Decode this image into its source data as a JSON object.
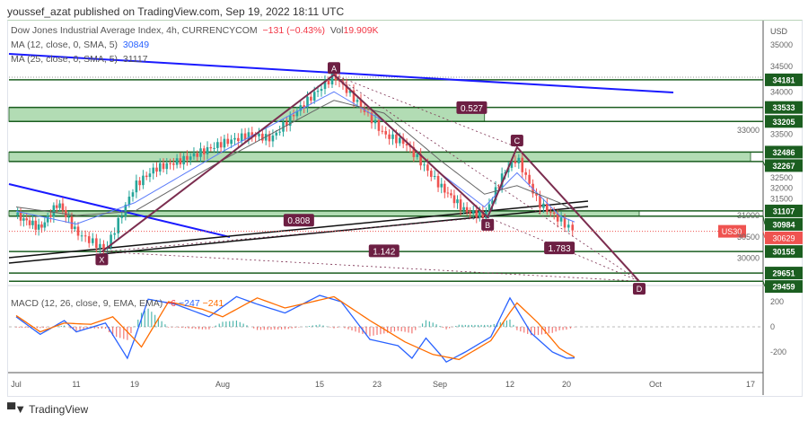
{
  "header": "youssef_azat published on TradingView.com, Sep 19, 2022 18:11 UTC",
  "legend": {
    "symbol": "Dow Jones Industrial Average Index, 4h, CURRENCYCOM",
    "change": "−131 (−0.43%)",
    "vol_label": "Vol",
    "vol": "19.909K",
    "ma12": "MA (12, close, 0, SMA, 5)",
    "ma12_val": "30849",
    "ma25": "MA (25, close, 0, SMA, 5)",
    "ma25_val": "31117",
    "macd": "MACD (12, 26, close, 9, EMA, EMA)",
    "macd_hist": "−6",
    "macd_val": "−247",
    "macd_sig": "−241"
  },
  "logo": "TradingView",
  "chart_data": {
    "type": "candlestick",
    "currency": "USD",
    "y_ticks": [
      35000,
      34500,
      34000,
      33500,
      33000,
      32500,
      32000,
      31500,
      31000,
      30500,
      30000
    ],
    "x_ticks": [
      {
        "label": "Jul",
        "day": 0
      },
      {
        "label": "11",
        "day": 10
      },
      {
        "label": "19",
        "day": 18
      },
      {
        "label": "Aug",
        "day": 31
      },
      {
        "label": "15",
        "day": 45
      },
      {
        "label": "23",
        "day": 53
      },
      {
        "label": "Sep",
        "day": 62
      },
      {
        "label": "12",
        "day": 73
      },
      {
        "label": "20",
        "day": 81
      },
      {
        "label": "Oct",
        "day": 92
      },
      {
        "label": "17",
        "day": 108
      }
    ],
    "price_path": [
      [
        0,
        31000
      ],
      [
        4,
        30700
      ],
      [
        7,
        31300
      ],
      [
        10,
        30600
      ],
      [
        14,
        30200
      ],
      [
        18,
        31700
      ],
      [
        21,
        32100
      ],
      [
        25,
        32300
      ],
      [
        31,
        32700
      ],
      [
        35,
        32900
      ],
      [
        38,
        32800
      ],
      [
        42,
        33500
      ],
      [
        47,
        34280
      ],
      [
        50,
        33700
      ],
      [
        54,
        32900
      ],
      [
        57,
        32700
      ],
      [
        59,
        32300
      ],
      [
        62,
        31700
      ],
      [
        66,
        31100
      ],
      [
        69,
        30990
      ],
      [
        72,
        32000
      ],
      [
        74,
        32350
      ],
      [
        77,
        31300
      ],
      [
        80,
        30900
      ],
      [
        82,
        30629
      ]
    ],
    "ma12_path": [
      [
        0,
        31100
      ],
      [
        10,
        30800
      ],
      [
        18,
        31300
      ],
      [
        31,
        32500
      ],
      [
        47,
        33900
      ],
      [
        54,
        33200
      ],
      [
        62,
        32000
      ],
      [
        69,
        31200
      ],
      [
        74,
        32000
      ],
      [
        80,
        31000
      ],
      [
        82,
        30849
      ]
    ],
    "ma25_path": [
      [
        0,
        31200
      ],
      [
        10,
        31000
      ],
      [
        18,
        31100
      ],
      [
        31,
        32300
      ],
      [
        47,
        33700
      ],
      [
        54,
        33400
      ],
      [
        62,
        32300
      ],
      [
        69,
        31500
      ],
      [
        74,
        31700
      ],
      [
        80,
        31300
      ],
      [
        82,
        31117
      ]
    ],
    "levels": [
      34181,
      33533,
      33205,
      32486,
      32267,
      31107,
      30984,
      30155,
      29651,
      29459
    ],
    "zones": [
      {
        "from": 33205,
        "to": 33533,
        "end_day": 69
      },
      {
        "from": 32267,
        "to": 32486,
        "end_day": 108
      },
      {
        "from": 30984,
        "to": 31107,
        "end_day": 90
      }
    ],
    "current": {
      "symbol": "US30",
      "price": 30629
    },
    "harmonic": {
      "points": [
        {
          "label": "X",
          "day": 13.5,
          "price": 30150
        },
        {
          "label": "A",
          "day": 47,
          "price": 34300
        },
        {
          "label": "B",
          "day": 69.5,
          "price": 30960
        },
        {
          "label": "C",
          "day": 74,
          "price": 32600
        },
        {
          "label": "D",
          "day": 90,
          "price": 29460
        }
      ],
      "ratios": [
        {
          "label": "0.527",
          "day": 67,
          "price": 33530
        },
        {
          "label": "0.808",
          "day": 42,
          "price": 30890
        },
        {
          "label": "1.142",
          "day": 54,
          "price": 30170
        },
        {
          "label": "1.783",
          "day": 80,
          "price": 30240
        }
      ]
    },
    "macd": {
      "ylim": [
        -300,
        250
      ],
      "y_ticks": [
        200,
        0,
        -200
      ],
      "macd_path": [
        [
          0,
          80
        ],
        [
          4,
          -60
        ],
        [
          8,
          50
        ],
        [
          10,
          -40
        ],
        [
          14,
          30
        ],
        [
          17,
          -250
        ],
        [
          20,
          220
        ],
        [
          24,
          180
        ],
        [
          29,
          80
        ],
        [
          33,
          240
        ],
        [
          36,
          180
        ],
        [
          40,
          110
        ],
        [
          45,
          250
        ],
        [
          48,
          200
        ],
        [
          52,
          -100
        ],
        [
          56,
          -150
        ],
        [
          58,
          -250
        ],
        [
          60,
          -90
        ],
        [
          63,
          -280
        ],
        [
          66,
          -200
        ],
        [
          70,
          -80
        ],
        [
          73,
          230
        ],
        [
          76,
          -50
        ],
        [
          79,
          -200
        ],
        [
          81,
          -250
        ],
        [
          82,
          -247
        ]
      ],
      "signal_path": [
        [
          0,
          90
        ],
        [
          4,
          -40
        ],
        [
          8,
          30
        ],
        [
          12,
          20
        ],
        [
          15,
          80
        ],
        [
          19,
          -160
        ],
        [
          23,
          200
        ],
        [
          28,
          140
        ],
        [
          31,
          80
        ],
        [
          36,
          230
        ],
        [
          40,
          150
        ],
        [
          44,
          200
        ],
        [
          47,
          240
        ],
        [
          52,
          50
        ],
        [
          57,
          -120
        ],
        [
          61,
          -220
        ],
        [
          65,
          -260
        ],
        [
          70,
          -110
        ],
        [
          74,
          190
        ],
        [
          77,
          30
        ],
        [
          80,
          -170
        ],
        [
          82,
          -241
        ]
      ]
    }
  }
}
